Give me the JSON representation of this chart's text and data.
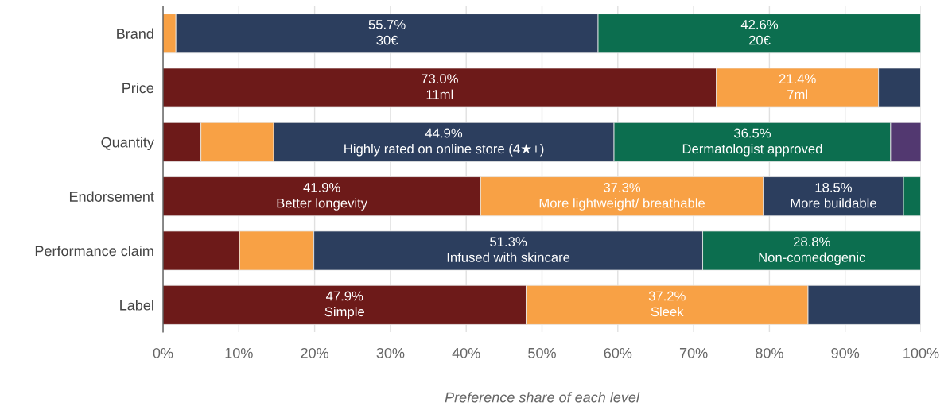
{
  "chart_data": {
    "type": "bar",
    "orientation": "horizontal",
    "stacked": true,
    "xlabel": "Preference share of each level",
    "categories": [
      "Brand",
      "Price",
      "Quantity",
      "Endorsement",
      "Performance claim",
      "Label"
    ],
    "series": [
      {
        "color": "#6d1a19",
        "values": [
          0,
          73.0,
          5.0,
          41.9,
          10.1,
          47.9
        ],
        "value_labels": [
          null,
          "73.0%\n11ml",
          null,
          "41.9%\nBetter longevity",
          null,
          "47.9%\nSimple"
        ]
      },
      {
        "color": "#f8a145",
        "values": [
          1.7,
          21.4,
          9.6,
          37.3,
          9.8,
          37.2
        ],
        "value_labels": [
          null,
          "21.4%\n7ml",
          null,
          "37.3%\nMore lightweight/ breathable",
          null,
          "37.2%\nSleek"
        ]
      },
      {
        "color": "#2c3e5e",
        "values": [
          55.7,
          5.6,
          44.9,
          18.5,
          51.3,
          14.9
        ],
        "value_labels": [
          "55.7%\n30€",
          null,
          "44.9%\nHighly rated on online store (4★+)",
          "18.5%\nMore buildable",
          "51.3%\nInfused with skincare",
          null
        ]
      },
      {
        "color": "#0c6e4f",
        "values": [
          42.6,
          0,
          36.5,
          2.3,
          28.8,
          0
        ],
        "value_labels": [
          "42.6%\n20€",
          null,
          "36.5%\nDermatologist approved",
          null,
          "28.8%\nNon-comedogenic",
          null
        ]
      },
      {
        "color": "#523870",
        "values": [
          0,
          0,
          4.0,
          0,
          0,
          0
        ]
      }
    ],
    "xlim": [
      0,
      100
    ],
    "xticks": [
      {
        "value": 0,
        "label": "0%"
      },
      {
        "value": 10,
        "label": "10%"
      },
      {
        "value": 20,
        "label": "20%"
      },
      {
        "value": 30,
        "label": "30%"
      },
      {
        "value": 40,
        "label": "40%"
      },
      {
        "value": 50,
        "label": "50%"
      },
      {
        "value": 60,
        "label": "60%"
      },
      {
        "value": 70,
        "label": "70%"
      },
      {
        "value": 80,
        "label": "80%"
      },
      {
        "value": 90,
        "label": "90%"
      },
      {
        "value": 100,
        "label": "100%"
      }
    ],
    "grid": "x",
    "legend": false
  }
}
